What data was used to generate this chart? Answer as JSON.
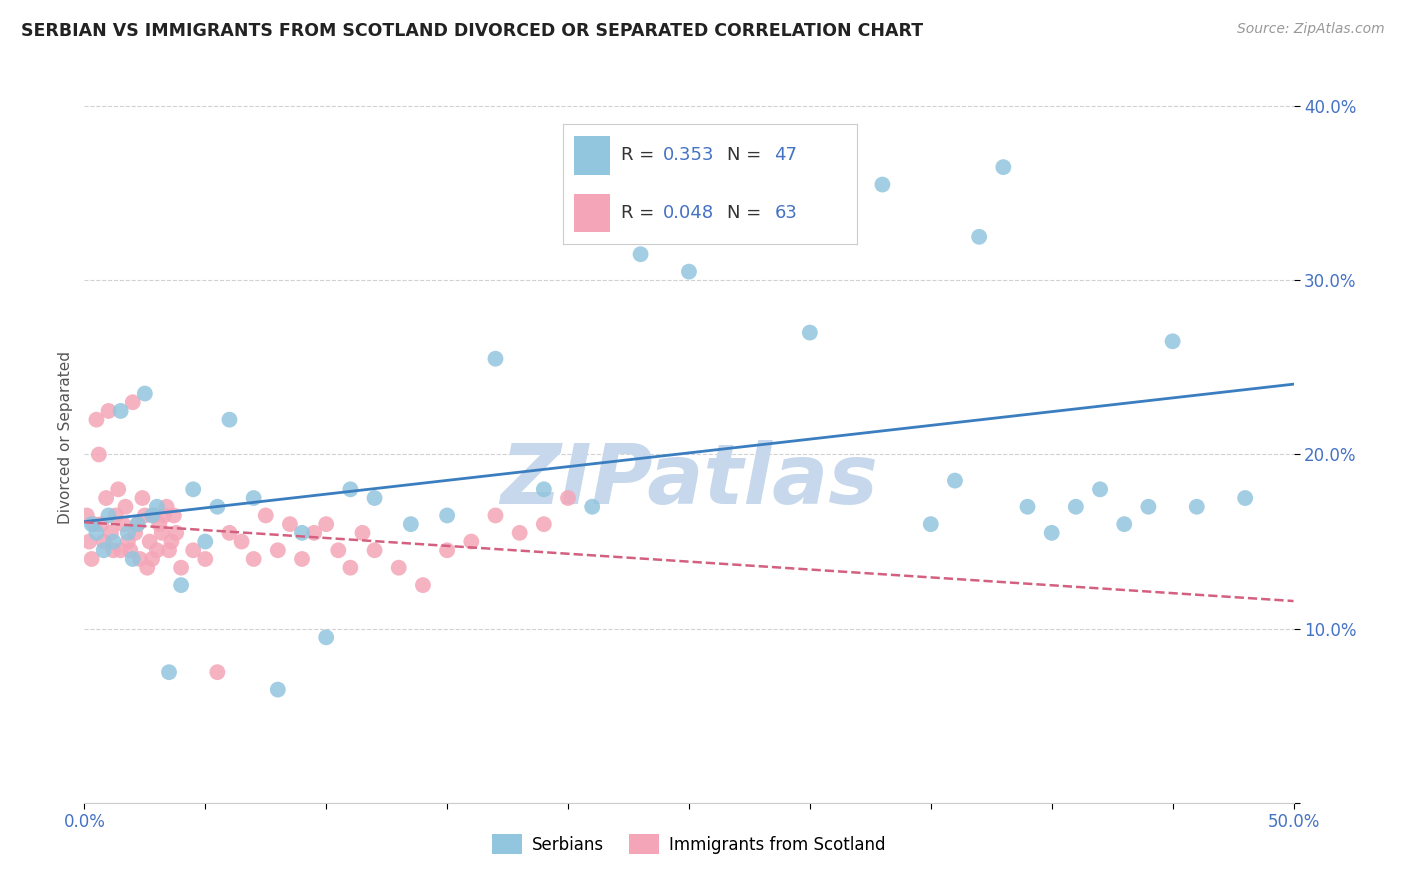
{
  "title": "SERBIAN VS IMMIGRANTS FROM SCOTLAND DIVORCED OR SEPARATED CORRELATION CHART",
  "source": "Source: ZipAtlas.com",
  "ylabel": "Divorced or Separated",
  "legend_blue_label": "Serbians",
  "legend_pink_label": "Immigrants from Scotland",
  "R_blue": 0.353,
  "N_blue": 47,
  "R_pink": 0.048,
  "N_pink": 63,
  "blue_color": "#92c5de",
  "pink_color": "#f4a6b8",
  "trend_blue_color": "#3a7ebf",
  "trend_pink_color": "#d46080",
  "watermark": "ZIPatlas",
  "watermark_color": "#c8d8ec",
  "background_color": "#ffffff",
  "xlim": [
    0,
    50
  ],
  "ylim": [
    0,
    42
  ],
  "blue_x": [
    0.3,
    0.5,
    0.8,
    1.0,
    1.2,
    1.5,
    1.8,
    2.0,
    2.2,
    2.5,
    2.8,
    3.0,
    3.5,
    4.0,
    4.5,
    5.0,
    5.5,
    6.0,
    7.0,
    8.0,
    9.0,
    10.0,
    11.0,
    12.0,
    13.5,
    15.0,
    17.0,
    19.0,
    21.0,
    23.0,
    25.0,
    27.0,
    30.0,
    33.0,
    35.0,
    36.0,
    37.0,
    38.0,
    39.0,
    40.0,
    41.0,
    42.0,
    43.0,
    44.0,
    45.0,
    46.0,
    48.0
  ],
  "blue_y": [
    16.0,
    15.5,
    14.5,
    16.5,
    15.0,
    22.5,
    15.5,
    14.0,
    16.0,
    23.5,
    16.5,
    17.0,
    7.5,
    12.5,
    18.0,
    15.0,
    17.0,
    22.0,
    17.5,
    6.5,
    15.5,
    9.5,
    18.0,
    17.5,
    16.0,
    16.5,
    25.5,
    18.0,
    17.0,
    31.5,
    30.5,
    33.5,
    27.0,
    35.5,
    16.0,
    18.5,
    32.5,
    36.5,
    17.0,
    15.5,
    17.0,
    18.0,
    16.0,
    17.0,
    26.5,
    17.0,
    17.5
  ],
  "pink_x": [
    0.1,
    0.2,
    0.3,
    0.4,
    0.5,
    0.6,
    0.7,
    0.8,
    0.9,
    1.0,
    1.1,
    1.2,
    1.3,
    1.4,
    1.5,
    1.6,
    1.7,
    1.8,
    1.9,
    2.0,
    2.1,
    2.2,
    2.3,
    2.4,
    2.5,
    2.6,
    2.7,
    2.8,
    2.9,
    3.0,
    3.1,
    3.2,
    3.3,
    3.4,
    3.5,
    3.6,
    3.7,
    3.8,
    4.0,
    4.5,
    5.0,
    5.5,
    6.0,
    6.5,
    7.0,
    7.5,
    8.0,
    8.5,
    9.0,
    9.5,
    10.0,
    10.5,
    11.0,
    11.5,
    12.0,
    13.0,
    14.0,
    15.0,
    16.0,
    17.0,
    18.0,
    19.0,
    20.0
  ],
  "pink_y": [
    16.5,
    15.0,
    14.0,
    16.0,
    22.0,
    20.0,
    16.0,
    15.0,
    17.5,
    22.5,
    15.5,
    14.5,
    16.5,
    18.0,
    14.5,
    16.0,
    17.0,
    15.0,
    14.5,
    23.0,
    15.5,
    16.0,
    14.0,
    17.5,
    16.5,
    13.5,
    15.0,
    14.0,
    16.5,
    14.5,
    16.0,
    15.5,
    16.5,
    17.0,
    14.5,
    15.0,
    16.5,
    15.5,
    13.5,
    14.5,
    14.0,
    7.5,
    15.5,
    15.0,
    14.0,
    16.5,
    14.5,
    16.0,
    14.0,
    15.5,
    16.0,
    14.5,
    13.5,
    15.5,
    14.5,
    13.5,
    12.5,
    14.5,
    15.0,
    16.5,
    15.5,
    16.0,
    17.5
  ]
}
